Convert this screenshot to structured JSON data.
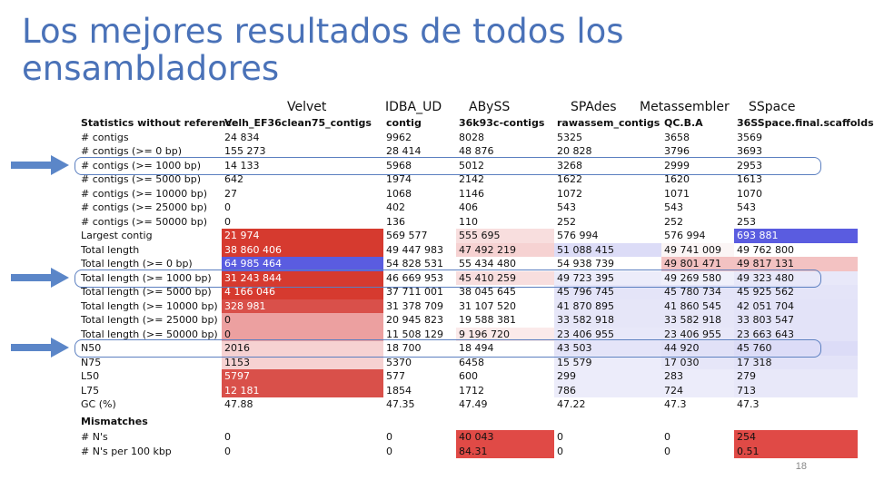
{
  "slide": {
    "title": "Los mejores resultados de todos los ensambladores",
    "page_number": "18"
  },
  "assemblers": [
    "Velvet",
    "IDBA_UD",
    "ABySS",
    "SPAdes",
    "Metassembler",
    "SSpace"
  ],
  "table": {
    "header": [
      "Statistics without reference",
      "Velh_EF36clean75_contigs",
      "contig",
      "36k93c-contigs",
      "rawassem_contigs",
      "QC.B.A",
      "36SSpace.final.scaffolds"
    ],
    "rows": [
      {
        "label": "# contigs",
        "values": [
          "24 834",
          "9962",
          "8028",
          "5325",
          "3658",
          "3569"
        ],
        "colors": [
          "",
          "",
          "",
          "",
          "",
          ""
        ]
      },
      {
        "label": "# contigs (>= 0 bp)",
        "values": [
          "155 273",
          "28 414",
          "48 876",
          "20 828",
          "3796",
          "3693"
        ],
        "colors": [
          "",
          "",
          "",
          "",
          "",
          ""
        ]
      },
      {
        "label": "# contigs (>= 1000 bp)",
        "values": [
          "14 133",
          "5968",
          "5012",
          "3268",
          "2999",
          "2953"
        ],
        "colors": [
          "",
          "",
          "",
          "",
          "",
          ""
        ]
      },
      {
        "label": "# contigs (>= 5000 bp)",
        "values": [
          "642",
          "1974",
          "2142",
          "1622",
          "1620",
          "1613"
        ],
        "colors": [
          "",
          "",
          "",
          "",
          "",
          ""
        ]
      },
      {
        "label": "# contigs (>= 10000 bp)",
        "values": [
          "27",
          "1068",
          "1146",
          "1072",
          "1071",
          "1070"
        ],
        "colors": [
          "",
          "",
          "",
          "",
          "",
          ""
        ]
      },
      {
        "label": "# contigs (>= 25000 bp)",
        "values": [
          "0",
          "402",
          "406",
          "543",
          "543",
          "543"
        ],
        "colors": [
          "",
          "",
          "",
          "",
          "",
          ""
        ]
      },
      {
        "label": "# contigs (>= 50000 bp)",
        "values": [
          "0",
          "136",
          "110",
          "252",
          "252",
          "253"
        ],
        "colors": [
          "",
          "",
          "",
          "",
          "",
          ""
        ]
      },
      {
        "label": "Largest contig",
        "values": [
          "21 974",
          "569 577",
          "555 695",
          "576 994",
          "576 994",
          "693 881"
        ],
        "colors": [
          "#d63a2f",
          "#ffffff",
          "#f8dede",
          "#ffffff",
          "#ffffff",
          "#5a5ce0"
        ]
      },
      {
        "label": "Total length",
        "values": [
          "38 860 406",
          "49 447 983",
          "47 492 219",
          "51 088 415",
          "49 741 009",
          "49 762 800"
        ],
        "colors": [
          "#d63a2f",
          "#ffffff",
          "#f6d2d2",
          "#dcdcf7",
          "#fbf5f5",
          "#ffffff"
        ]
      },
      {
        "label": "Total length (>= 0 bp)",
        "values": [
          "64 985 464",
          "54 828 531",
          "55 434 480",
          "54 938 739",
          "49 801 471",
          "49 817 131"
        ],
        "colors": [
          "#5a5ce0",
          "#ffffff",
          "#ffffff",
          "#ffffff",
          "#f3c2c2",
          "#f3c2c2"
        ]
      },
      {
        "label": "Total length (>= 1000 bp)",
        "values": [
          "31 243 844",
          "46 669 953",
          "45 410 259",
          "49 723 395",
          "49 269 580",
          "49 323 480"
        ],
        "colors": [
          "#d63a2f",
          "#ffffff",
          "#f8dede",
          "#ececfa",
          "#f0f0fb",
          "#e8e8f9"
        ]
      },
      {
        "label": "Total length (>= 5000 bp)",
        "values": [
          "4 166 046",
          "37 711 001",
          "38 045 645",
          "45 796 745",
          "45 780 734",
          "45 925 562"
        ],
        "colors": [
          "#d63a2f",
          "#ffffff",
          "#ffffff",
          "#e4e4f8",
          "#e4e4f8",
          "#e4e4f8"
        ]
      },
      {
        "label": "Total length (>= 10000 bp)",
        "values": [
          "328 981",
          "31 378 709",
          "31 107 520",
          "41 870 895",
          "41 860 545",
          "42 051 704"
        ],
        "colors": [
          "#d9504a",
          "#ffffff",
          "#ffffff",
          "#e6e6f8",
          "#e6e6f8",
          "#e3e3f8"
        ]
      },
      {
        "label": "Total length (>= 25000 bp)",
        "values": [
          "0",
          "20 945 823",
          "19 588 381",
          "33 582 918",
          "33 582 918",
          "33 803 547"
        ],
        "colors": [
          "#eca0a0",
          "#ffffff",
          "#ffffff",
          "#e6e6f8",
          "#e6e6f8",
          "#e3e3f8"
        ]
      },
      {
        "label": "Total length (>= 50000 bp)",
        "values": [
          "0",
          "11 508 129",
          "9 196 720",
          "23 406 955",
          "23 406 955",
          "23 663 643"
        ],
        "colors": [
          "#eca0a0",
          "#ffffff",
          "#fbeaea",
          "#e8e8f9",
          "#e8e8f9",
          "#e3e3f8"
        ]
      },
      {
        "label": "N50",
        "values": [
          "2016",
          "18 700",
          "18 494",
          "43 503",
          "44 920",
          "45 760"
        ],
        "colors": [
          "#f6d2d2",
          "#ffffff",
          "#ffffff",
          "#e4e4f8",
          "#e1e1f7",
          "#dcdcf7"
        ]
      },
      {
        "label": "N75",
        "values": [
          "1153",
          "5370",
          "6458",
          "15 579",
          "17 030",
          "17 318"
        ],
        "colors": [
          "#f6d2d2",
          "#ffffff",
          "#ffffff",
          "#ececfa",
          "#e6e6f8",
          "#e3e3f8"
        ]
      },
      {
        "label": "L50",
        "values": [
          "5797",
          "577",
          "600",
          "299",
          "283",
          "279"
        ],
        "colors": [
          "#d9504a",
          "#ffffff",
          "#ffffff",
          "#ececfa",
          "#ececfa",
          "#e8e8f9"
        ]
      },
      {
        "label": "L75",
        "values": [
          "12 181",
          "1854",
          "1712",
          "786",
          "724",
          "713"
        ],
        "colors": [
          "#d9504a",
          "#ffffff",
          "#ffffff",
          "#ececfa",
          "#ececfa",
          "#e8e8f9"
        ]
      },
      {
        "label": "GC (%)",
        "values": [
          "47.88",
          "47.35",
          "47.49",
          "47.22",
          "47.3",
          "47.3"
        ],
        "colors": [
          "",
          "",
          "",
          "",
          "",
          ""
        ]
      }
    ],
    "section_label": "Mismatches",
    "mismatch_rows": [
      {
        "label": "# N's",
        "values": [
          "0",
          "0",
          "40 043",
          "0",
          "0",
          "254"
        ],
        "colors": [
          "",
          "",
          "#e04a46",
          "",
          "",
          "#e04a46"
        ]
      },
      {
        "label": "# N's per 100 kbp",
        "values": [
          "0",
          "0",
          "84.31",
          "0",
          "0",
          "0.51"
        ],
        "colors": [
          "",
          "",
          "#e04a46",
          "",
          "",
          "#e04a46"
        ]
      }
    ]
  },
  "highlighted_rows": [
    "# contigs (>= 1000 bp)",
    "Total length (>= 1000 bp)",
    "N50"
  ],
  "colors": {
    "title": "#4a72b8",
    "arrow": "#5b86c8",
    "highlight_border": "#5b7fc0"
  }
}
